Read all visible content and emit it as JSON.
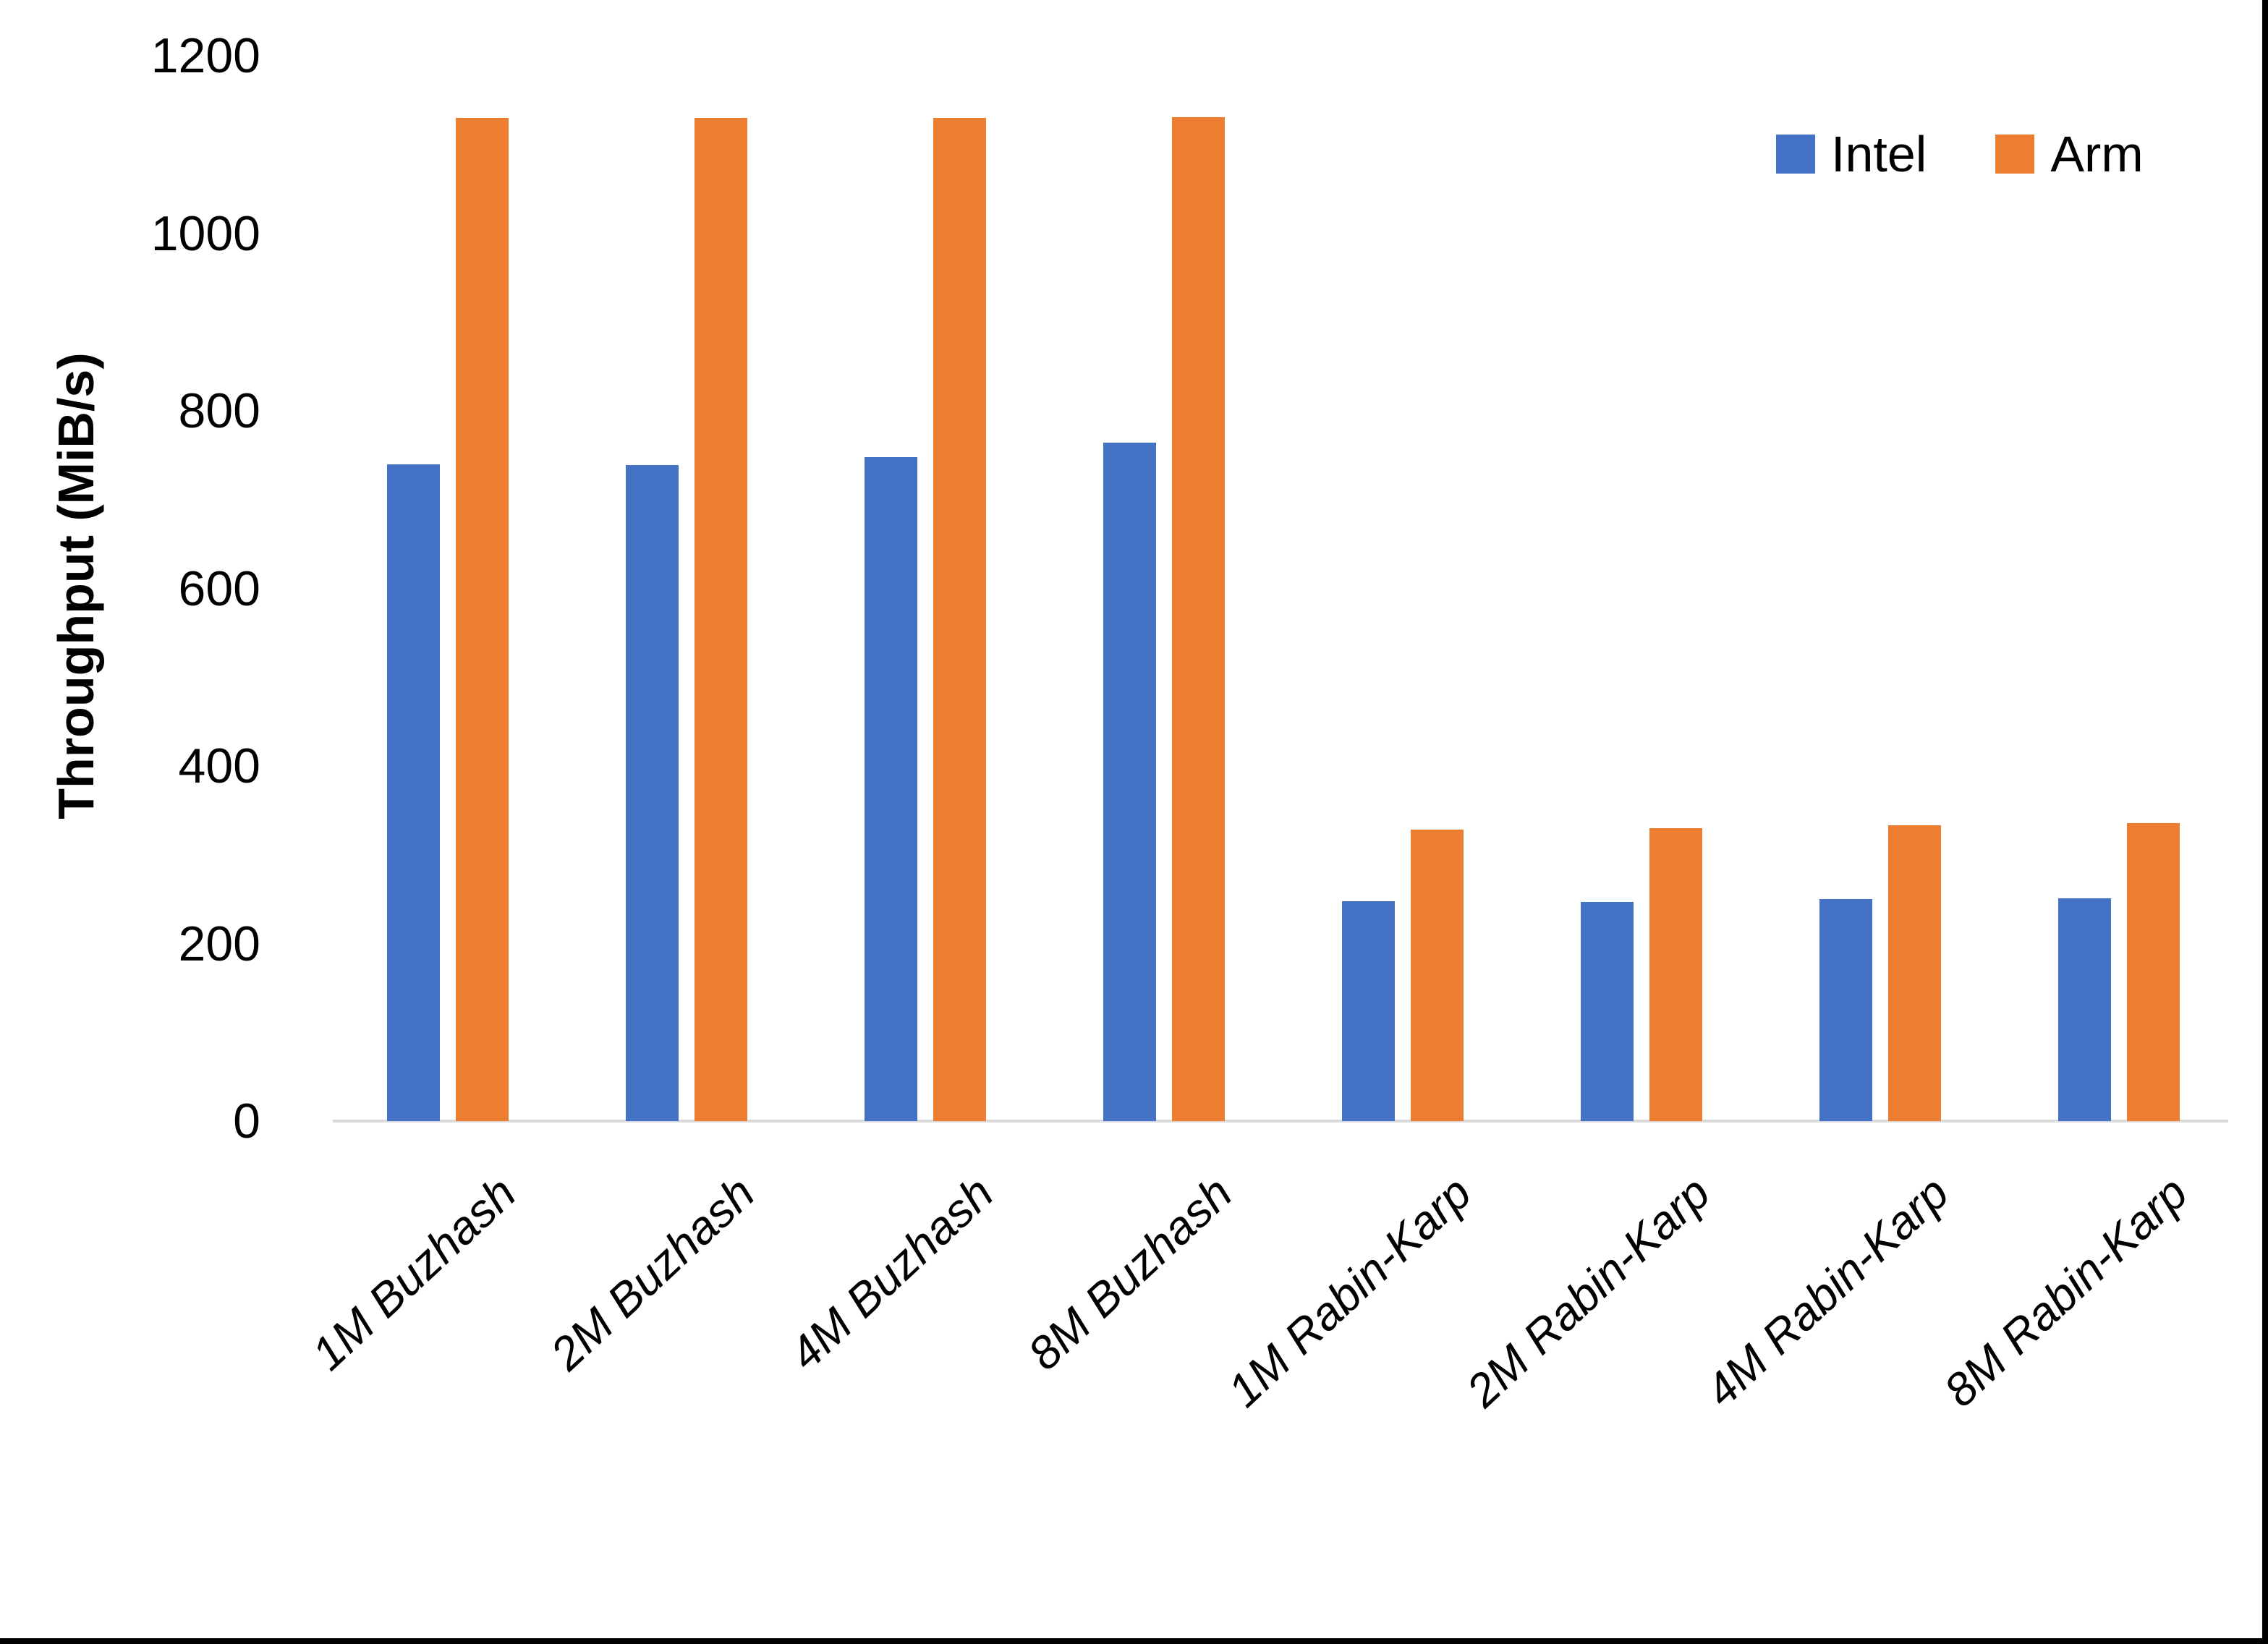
{
  "chart_data": {
    "type": "bar",
    "title": "",
    "categories": [
      "1M Buzhash",
      "2M Buzhash",
      "4M Buzhash",
      "8M Buzhash",
      "1M Rabin-Karp",
      "2M Rabin-Karp",
      "4M Rabin-Karp",
      "8M Rabin-Karp"
    ],
    "series": [
      {
        "name": "Intel",
        "color": "#4472C4",
        "values": [
          740,
          739,
          748,
          764,
          248,
          247,
          250,
          251
        ]
      },
      {
        "name": "Arm",
        "color": "#ED7D31",
        "values": [
          1130,
          1130,
          1130,
          1131,
          328,
          330,
          333,
          336
        ]
      }
    ],
    "xlabel": "",
    "ylabel": "Throughput (MiB/s)",
    "ylim": [
      0,
      1200
    ],
    "yticks": [
      0,
      200,
      400,
      600,
      800,
      1000,
      1200
    ],
    "grid": false,
    "legend_position": "top-right"
  },
  "legend": {
    "items": [
      {
        "label": "Intel",
        "color": "#4472C4"
      },
      {
        "label": "Arm",
        "color": "#ED7D31"
      }
    ]
  },
  "colors": {
    "background": "#FFFFFF",
    "axis_line": "#D9D9D9",
    "border": "#000000",
    "text": "#000000"
  }
}
